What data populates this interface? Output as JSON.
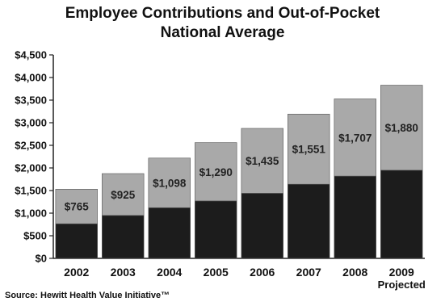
{
  "chart_data": {
    "type": "bar",
    "stacked": true,
    "title_line1": "Employee Contributions and Out-of-Pocket",
    "title_line2": "National Average",
    "categories": [
      "2002",
      "2003",
      "2004",
      "2005",
      "2006",
      "2007",
      "2008",
      "2009"
    ],
    "category_sublabels": [
      "",
      "",
      "",
      "",
      "",
      "",
      "",
      "Projected"
    ],
    "series": [
      {
        "values": [
          765,
          950,
          1120,
          1270,
          1440,
          1640,
          1820,
          1950
        ],
        "color": "#1c1c1c"
      },
      {
        "values": [
          765,
          925,
          1098,
          1290,
          1435,
          1551,
          1707,
          1880
        ],
        "color": "#a9a9a9"
      }
    ],
    "top_labels": [
      "$765",
      "$925",
      "$1,098",
      "$1,290",
      "$1,435",
      "$1,551",
      "$1,707",
      "$1,880"
    ],
    "ylim": [
      0,
      4500
    ],
    "y_ticks": [
      0,
      500,
      1000,
      1500,
      2000,
      2500,
      3000,
      3500,
      4000,
      4500
    ],
    "y_tick_labels": [
      "$0",
      "$500",
      "$1,000",
      "$1,500",
      "$2,000",
      "$2,500",
      "$3,000",
      "$3,500",
      "$4,000",
      "$4,500"
    ],
    "grid": false,
    "legend": "none"
  },
  "source": "Source: Hewitt Health Value Initiative™"
}
